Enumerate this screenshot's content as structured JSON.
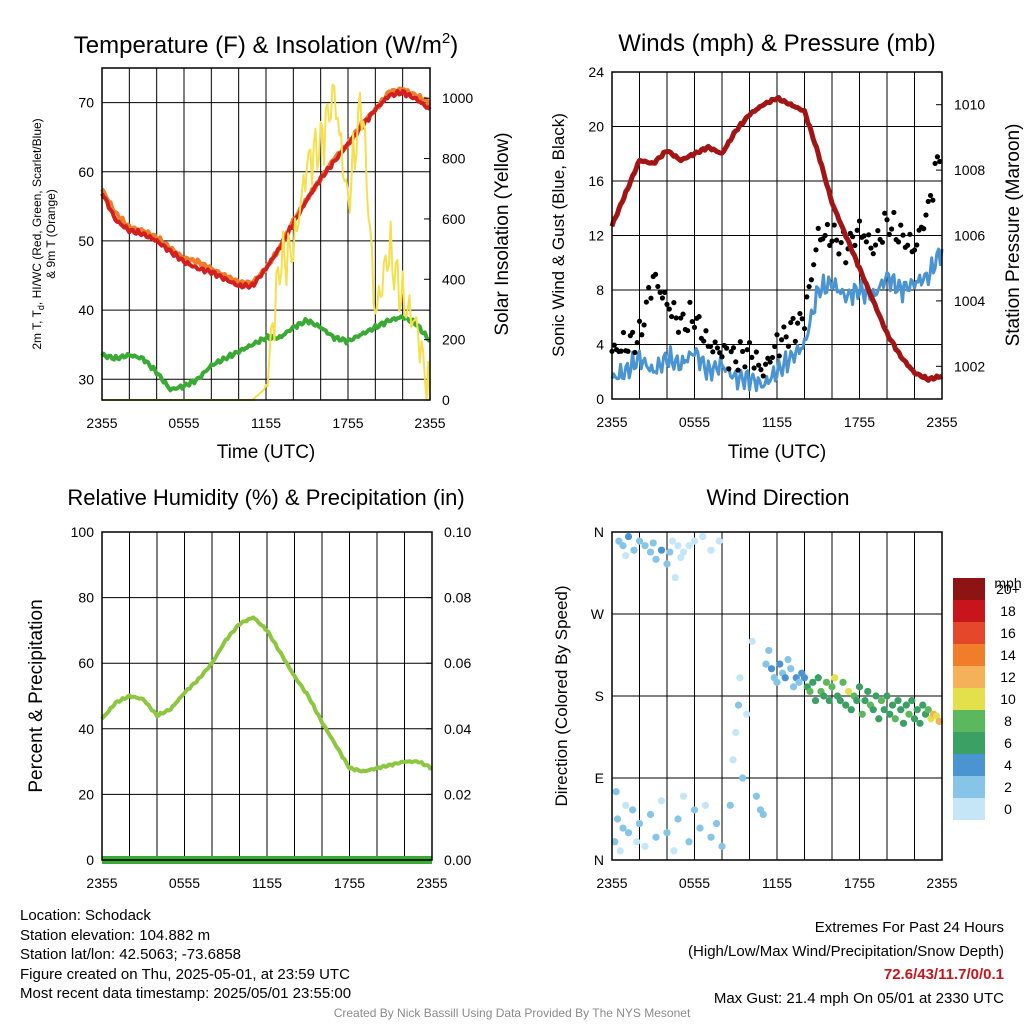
{
  "colors": {
    "temp": "#d21f1f",
    "temp_9m": "#f07d2a",
    "dewpoint": "#3aaa35",
    "solar": "#f5df4d",
    "wind": "#4b94d2",
    "gust": "#000000",
    "pressure": "#a31515",
    "rh": "#8dc63f",
    "precip": "#3aaa35",
    "grid": "#000000"
  },
  "x_ticks": [
    "2355",
    "0555",
    "1155",
    "1755",
    "2355"
  ],
  "chart_data": [
    {
      "id": "temp",
      "type": "line",
      "title": "Temperature (F) & Insolation (W/m²)",
      "xlabel": "Time (UTC)",
      "ylabel_lines": [
        "2m T, Td, HI/WC (Red, Green, Scarlet/Blue)",
        "& 9m T (Orange)"
      ],
      "y2label": "Solar Insolation (Yellow)",
      "ylim": [
        27,
        75
      ],
      "yticks": [
        30,
        40,
        50,
        60,
        70
      ],
      "y2lim": [
        0,
        1100
      ],
      "y2ticks": [
        0,
        200,
        400,
        600,
        800,
        1000
      ],
      "hours": [
        0,
        1,
        2,
        3,
        4,
        5,
        6,
        7,
        8,
        9,
        10,
        11,
        12,
        13,
        14,
        15,
        16,
        17,
        18,
        19,
        20,
        21,
        22,
        23,
        24
      ],
      "series": [
        {
          "key": "temp_9m",
          "axis": "left",
          "width": 4,
          "values": [
            57.5,
            54,
            52,
            51.5,
            50.5,
            49,
            47.5,
            47,
            46,
            45,
            44,
            44,
            46,
            49,
            53,
            56,
            59,
            62,
            64,
            67,
            69,
            71.5,
            72,
            71,
            70
          ]
        },
        {
          "key": "temp",
          "axis": "left",
          "width": 4,
          "values": [
            57,
            53,
            51.5,
            51,
            50,
            48.5,
            47,
            46,
            45.5,
            44.5,
            43.5,
            43.5,
            46,
            49,
            52.5,
            56,
            59,
            61.5,
            64,
            66.5,
            69,
            71,
            71.5,
            70.5,
            69
          ]
        },
        {
          "key": "dewpoint",
          "axis": "left",
          "width": 4,
          "values": [
            33.5,
            33,
            33.5,
            33,
            31,
            28.5,
            29,
            30,
            32,
            33,
            34,
            35,
            36,
            36,
            37.5,
            38.5,
            37.5,
            36,
            35.5,
            36.5,
            37.5,
            38.5,
            39,
            38,
            35.5
          ]
        },
        {
          "key": "solar",
          "axis": "right",
          "width": 2,
          "values": [
            0,
            0,
            0,
            0,
            0,
            0,
            0,
            0,
            0,
            0,
            0,
            0,
            40,
            450,
            500,
            780,
            850,
            1020,
            650,
            1000,
            280,
            500,
            330,
            250,
            0
          ]
        }
      ]
    },
    {
      "id": "wind",
      "type": "line",
      "title": "Winds (mph) & Pressure (mb)",
      "xlabel": "Time (UTC)",
      "ylabel": "Sonic Wind & Gust (Blue, Black)",
      "y2label": "Station Pressure (Maroon)",
      "ylim": [
        0,
        24
      ],
      "yticks": [
        0,
        4,
        8,
        12,
        16,
        20,
        24
      ],
      "y2lim": [
        1001,
        1011
      ],
      "y2ticks": [
        1002,
        1004,
        1006,
        1008,
        1010
      ],
      "hours": [
        0,
        1,
        2,
        3,
        4,
        5,
        6,
        7,
        8,
        9,
        10,
        11,
        12,
        13,
        14,
        15,
        16,
        17,
        18,
        19,
        20,
        21,
        22,
        23,
        24
      ],
      "series": [
        {
          "key": "wind",
          "axis": "left",
          "width": 3,
          "values": [
            1.5,
            2,
            3,
            2,
            3,
            2.5,
            3.5,
            2,
            2.5,
            1.5,
            1.5,
            1,
            2,
            3,
            4,
            8,
            8.5,
            7.5,
            8,
            7.5,
            9,
            8,
            8.5,
            9,
            11
          ]
        },
        {
          "key": "gust",
          "axis": "left",
          "type": "scatter",
          "values": [
            3.5,
            4,
            4.5,
            9,
            7,
            5.5,
            6,
            4,
            3.5,
            3,
            3.5,
            2,
            4,
            5,
            6,
            12,
            12,
            11,
            12.5,
            11,
            13,
            12,
            11,
            14,
            19
          ]
        },
        {
          "key": "pressure",
          "axis": "right",
          "width": 5,
          "values": [
            1006.3,
            1007.3,
            1008.3,
            1008.2,
            1008.6,
            1008.3,
            1008.5,
            1008.7,
            1008.5,
            1009.2,
            1009.7,
            1010,
            1010.2,
            1010,
            1009.8,
            1008.5,
            1007,
            1006,
            1005,
            1004,
            1003,
            1002.3,
            1001.8,
            1001.6,
            1001.7
          ]
        }
      ]
    },
    {
      "id": "rh",
      "type": "line",
      "title": "Relative Humidity (%) & Precipitation (in)",
      "ylabel": "Percent & Precipitation",
      "ylim": [
        0,
        100
      ],
      "yticks": [
        0,
        20,
        40,
        60,
        80,
        100
      ],
      "y2lim": [
        0,
        0.1
      ],
      "y2ticks": [
        "0.00",
        "0.02",
        "0.04",
        "0.06",
        "0.08",
        "0.10"
      ],
      "hours": [
        0,
        1,
        2,
        3,
        4,
        5,
        6,
        7,
        8,
        9,
        10,
        11,
        12,
        13,
        14,
        15,
        16,
        17,
        18,
        19,
        20,
        21,
        22,
        23,
        24
      ],
      "series": [
        {
          "key": "rh",
          "axis": "left",
          "width": 4,
          "values": [
            43,
            48,
            50,
            49,
            44,
            46,
            51,
            55,
            60,
            67,
            72,
            74,
            70,
            63,
            56,
            50,
            42,
            35,
            28,
            27,
            28,
            29,
            30,
            30,
            28
          ]
        },
        {
          "key": "precip",
          "axis": "right",
          "width": 8,
          "values": [
            0,
            0,
            0,
            0,
            0,
            0,
            0,
            0,
            0,
            0,
            0,
            0,
            0,
            0,
            0,
            0,
            0,
            0,
            0,
            0,
            0,
            0,
            0,
            0,
            0
          ]
        }
      ]
    },
    {
      "id": "dir",
      "type": "scatter",
      "title": "Wind Direction",
      "ylabel": "Direction (Colored By Speed)",
      "ylim": [
        0,
        360
      ],
      "yticks": [
        "N",
        "E",
        "S",
        "W",
        "N"
      ],
      "colorbar": {
        "unit": "mph",
        "labels": [
          "0",
          "2",
          "4",
          "6",
          "8",
          "10",
          "12",
          "14",
          "16",
          "18",
          "20+"
        ],
        "colors": [
          "#c4e6f6",
          "#86c4e8",
          "#4b94d2",
          "#3aa063",
          "#5cb85c",
          "#e3e04b",
          "#f5b05a",
          "#f07d2a",
          "#e4472a",
          "#c8141b",
          "#8e1414"
        ]
      },
      "points": [
        [
          0.2,
          20,
          2
        ],
        [
          0.4,
          45,
          2
        ],
        [
          0.6,
          10,
          1
        ],
        [
          0.8,
          35,
          2
        ],
        [
          1.0,
          60,
          1
        ],
        [
          0.3,
          75,
          2
        ],
        [
          1.2,
          30,
          2
        ],
        [
          1.5,
          55,
          3
        ],
        [
          1.8,
          20,
          1
        ],
        [
          2.0,
          40,
          2
        ],
        [
          2.4,
          15,
          1
        ],
        [
          2.8,
          50,
          2
        ],
        [
          3.2,
          25,
          2
        ],
        [
          3.6,
          65,
          1
        ],
        [
          4.0,
          30,
          2
        ],
        [
          4.5,
          10,
          1
        ],
        [
          4.8,
          45,
          2
        ],
        [
          5.2,
          70,
          1
        ],
        [
          5.6,
          20,
          2
        ],
        [
          6.0,
          55,
          3
        ],
        [
          6.4,
          35,
          2
        ],
        [
          6.8,
          60,
          1
        ],
        [
          7.2,
          25,
          2
        ],
        [
          7.6,
          40,
          2
        ],
        [
          8.0,
          15,
          3
        ],
        [
          0.5,
          350,
          3
        ],
        [
          0.8,
          345,
          2
        ],
        [
          1.2,
          355,
          4
        ],
        [
          1.6,
          340,
          3
        ],
        [
          2.0,
          350,
          2
        ],
        [
          2.4,
          345,
          2
        ],
        [
          2.8,
          338,
          3
        ],
        [
          3.2,
          330,
          2
        ],
        [
          3.6,
          340,
          4
        ],
        [
          4.0,
          325,
          2
        ],
        [
          4.4,
          350,
          1
        ],
        [
          4.8,
          345,
          1
        ],
        [
          5.2,
          338,
          1
        ],
        [
          5.6,
          345,
          1
        ],
        [
          6.0,
          350,
          1
        ],
        [
          6.6,
          355,
          1
        ],
        [
          7.2,
          340,
          1
        ],
        [
          7.8,
          350,
          1
        ],
        [
          3.0,
          348,
          3
        ],
        [
          1.0,
          334,
          1
        ],
        [
          4.2,
          338,
          2
        ],
        [
          4.6,
          310,
          1
        ],
        [
          5.0,
          332,
          1
        ],
        [
          8.6,
          60,
          2
        ],
        [
          8.8,
          110,
          1
        ],
        [
          9.0,
          140,
          1
        ],
        [
          9.2,
          170,
          2
        ],
        [
          9.3,
          200,
          1
        ],
        [
          9.5,
          90,
          2
        ],
        [
          9.8,
          160,
          1
        ],
        [
          10.2,
          240,
          1
        ],
        [
          10.5,
          70,
          2
        ],
        [
          10.8,
          55,
          3
        ],
        [
          11.0,
          50,
          3
        ],
        [
          11.2,
          215,
          3
        ],
        [
          11.4,
          230,
          3
        ],
        [
          11.6,
          210,
          4
        ],
        [
          11.8,
          200,
          3
        ],
        [
          12.0,
          195,
          2
        ],
        [
          12.2,
          215,
          4
        ],
        [
          12.4,
          205,
          3
        ],
        [
          12.6,
          200,
          4
        ],
        [
          12.8,
          220,
          2
        ],
        [
          13.0,
          210,
          3
        ],
        [
          13.2,
          190,
          2
        ],
        [
          13.4,
          200,
          4
        ],
        [
          13.6,
          195,
          3
        ],
        [
          13.8,
          205,
          4
        ],
        [
          14.0,
          200,
          5
        ],
        [
          14.2,
          190,
          6
        ],
        [
          14.4,
          185,
          8
        ],
        [
          14.6,
          195,
          7
        ],
        [
          14.8,
          175,
          6
        ],
        [
          15.0,
          200,
          7
        ],
        [
          15.2,
          185,
          8
        ],
        [
          15.4,
          180,
          6
        ],
        [
          15.6,
          195,
          9
        ],
        [
          15.8,
          175,
          7
        ],
        [
          16.0,
          190,
          8
        ],
        [
          16.2,
          200,
          10
        ],
        [
          16.4,
          180,
          6
        ],
        [
          16.6,
          175,
          7
        ],
        [
          16.8,
          195,
          8
        ],
        [
          17.0,
          170,
          6
        ],
        [
          17.2,
          185,
          10
        ],
        [
          17.4,
          165,
          7
        ],
        [
          17.6,
          180,
          8
        ],
        [
          17.8,
          175,
          6
        ],
        [
          18.0,
          190,
          7
        ],
        [
          18.2,
          160,
          8
        ],
        [
          18.4,
          175,
          6
        ],
        [
          18.6,
          185,
          7
        ],
        [
          18.8,
          170,
          8
        ],
        [
          19.0,
          165,
          6
        ],
        [
          19.2,
          180,
          7
        ],
        [
          19.4,
          155,
          6
        ],
        [
          19.6,
          175,
          8
        ],
        [
          19.8,
          165,
          7
        ],
        [
          20.0,
          180,
          6
        ],
        [
          20.2,
          160,
          7
        ],
        [
          20.4,
          170,
          6
        ],
        [
          20.6,
          155,
          8
        ],
        [
          20.8,
          175,
          7
        ],
        [
          21.0,
          165,
          6
        ],
        [
          21.2,
          150,
          7
        ],
        [
          21.4,
          170,
          6
        ],
        [
          21.6,
          160,
          8
        ],
        [
          21.8,
          175,
          7
        ],
        [
          22.0,
          155,
          6
        ],
        [
          22.2,
          165,
          7
        ],
        [
          22.4,
          150,
          6
        ],
        [
          22.6,
          170,
          6
        ],
        [
          22.8,
          160,
          7
        ],
        [
          23.0,
          165,
          8
        ],
        [
          23.2,
          155,
          10
        ],
        [
          23.4,
          160,
          12
        ],
        [
          23.6,
          158,
          11
        ],
        [
          23.8,
          152,
          12
        ]
      ]
    }
  ],
  "footer": {
    "location": "Location: Schodack",
    "elevation": "Station elevation: 104.882 m",
    "latlon": "Station lat/lon: 42.5063; -73.6858",
    "created": "Figure created on Thu, 2025-05-01, at 23:59 UTC",
    "recent": "Most recent data timestamp: 2025/05/01 23:55:00",
    "extremes_title": "Extremes For Past 24 Hours",
    "extremes_desc": "(High/Low/Max Wind/Precipitation/Snow Depth)",
    "extremes_values": "72.6/43/11.7/0/0.1",
    "max_gust": "Max Gust: 21.4 mph On 05/01 at 2330 UTC",
    "credit": "Created By Nick Bassill Using Data Provided By The NYS Mesonet"
  }
}
